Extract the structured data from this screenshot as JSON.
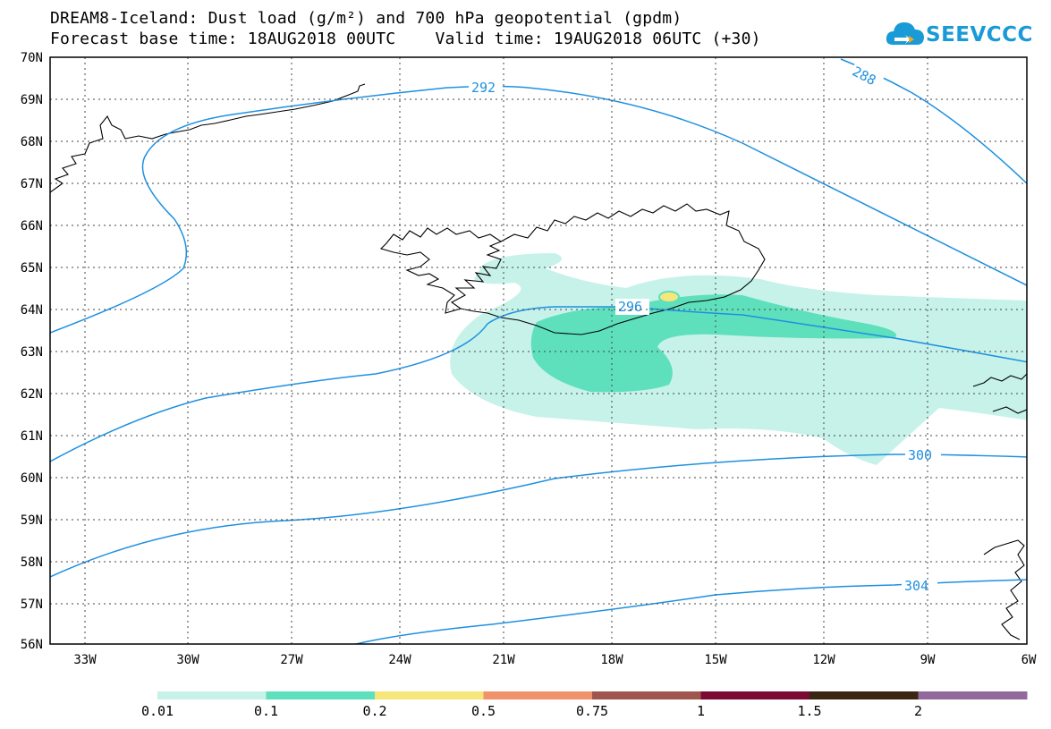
{
  "title_line1": "DREAM8-Iceland: Dust load (g/m²) and 700 hPa geopotential (gpdm)",
  "title_line2": "Forecast base time: 18AUG2018 00UTC    Valid time: 19AUG2018 06UTC (+30)",
  "logo_text": "SEEVCCC",
  "lat_labels": [
    "70N",
    "69N",
    "68N",
    "67N",
    "66N",
    "65N",
    "64N",
    "63N",
    "62N",
    "61N",
    "60N",
    "59N",
    "58N",
    "57N",
    "56N"
  ],
  "lon_labels": [
    "33W",
    "30W",
    "27W",
    "24W",
    "21W",
    "18W",
    "15W",
    "12W",
    "9W",
    "6W"
  ],
  "contour_labels": [
    "292",
    "288",
    "296",
    "300",
    "304"
  ],
  "colorbar": {
    "colors": [
      "#c6f2ea",
      "#5ee0bc",
      "#f7e67a",
      "#f0936a",
      "#a0564e",
      "#7a0a32",
      "#3a2612",
      "#93689a"
    ],
    "labels": [
      "0.01",
      "0.1",
      "0.2",
      "0.5",
      "0.75",
      "1",
      "1.5",
      "2"
    ]
  },
  "colors": {
    "contour": "#1e90e0",
    "coast": "#000000",
    "dust_low": "#c6f2ea",
    "dust_mid": "#5ee0bc",
    "dust_high": "#f7e67a"
  }
}
